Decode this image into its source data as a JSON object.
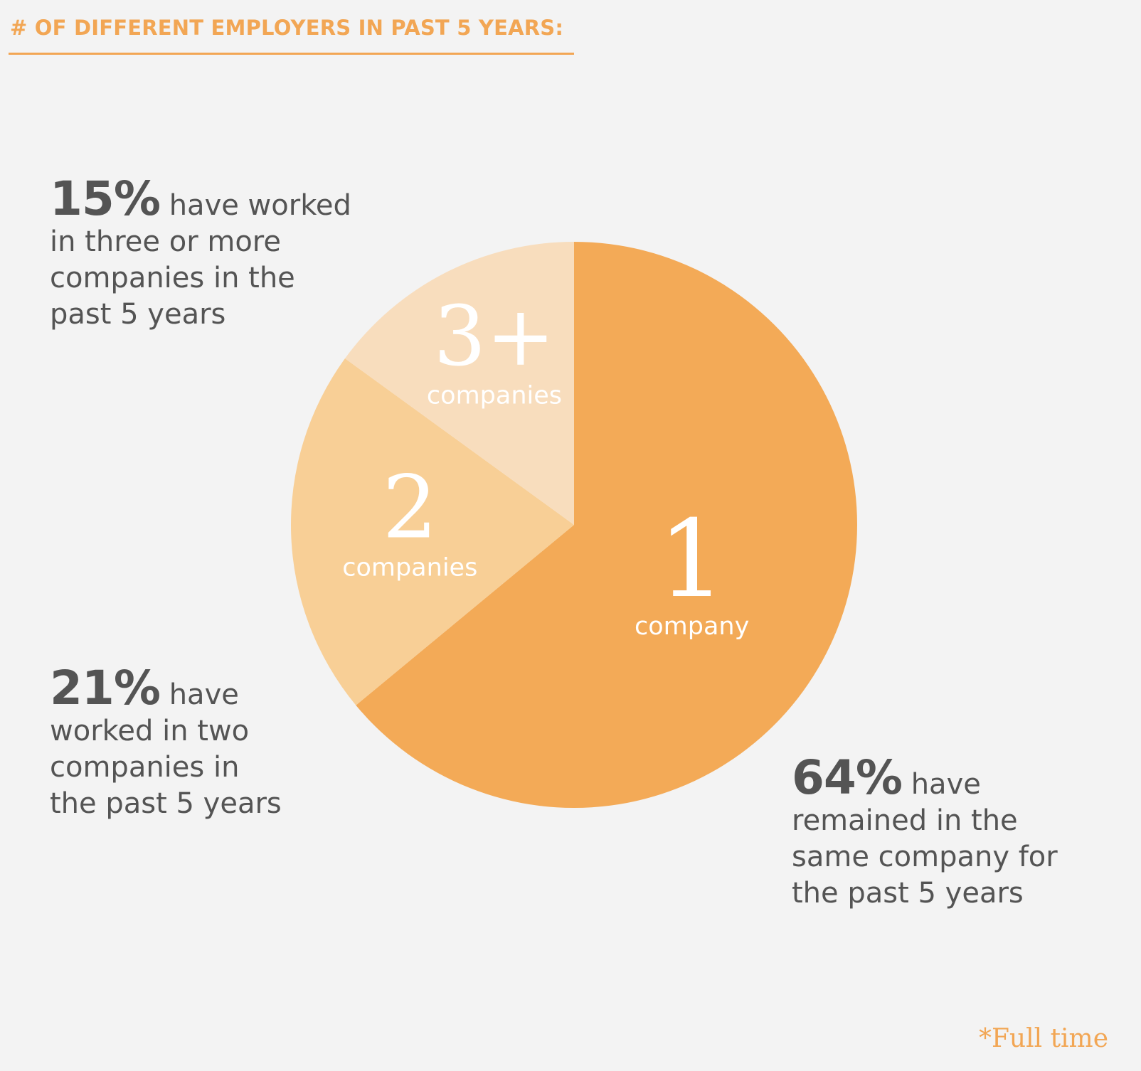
{
  "title": "# OF DIFFERENT EMPLOYERS IN PAST 5 YEARS:",
  "footnote": "*Full time",
  "callouts": {
    "three_plus": {
      "pct": "15%",
      "first_line": " have worked",
      "lines": [
        "in three or more",
        "companies in the",
        "past 5 years"
      ]
    },
    "two": {
      "pct": "21%",
      "first_line": " have",
      "lines": [
        "worked in two",
        "companies in",
        "the past 5 years"
      ]
    },
    "one": {
      "pct": "64%",
      "first_line": " have",
      "lines": [
        "remained in the",
        "same company for",
        "the past 5 years"
      ]
    }
  },
  "chart_data": {
    "type": "pie",
    "title": "# OF DIFFERENT EMPLOYERS IN PAST 5 YEARS:",
    "slices": [
      {
        "number": "1",
        "label": "company",
        "value": 64,
        "color": "#f3aa57"
      },
      {
        "number": "2",
        "label": "companies",
        "value": 21,
        "color": "#f8cf96"
      },
      {
        "number": "3+",
        "label": "companies",
        "value": 15,
        "color": "#f8ddbd"
      }
    ],
    "start": "12 o'clock",
    "direction": "clockwise"
  }
}
